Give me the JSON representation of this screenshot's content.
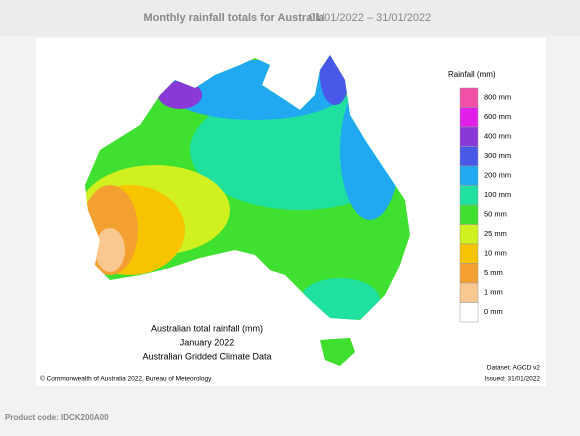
{
  "header": {
    "title": "Monthly rainfall totals for Australia",
    "period": "01/01/2022 – 31/01/2022"
  },
  "map": {
    "legend": {
      "title": "Rainfall (mm)",
      "items": [
        {
          "label": "800 mm",
          "color": "#f050a8"
        },
        {
          "label": "600 mm",
          "color": "#e020e8"
        },
        {
          "label": "400 mm",
          "color": "#8a38d8"
        },
        {
          "label": "300 mm",
          "color": "#4858e8"
        },
        {
          "label": "200 mm",
          "color": "#20a8f0"
        },
        {
          "label": "100 mm",
          "color": "#20e0a0"
        },
        {
          "label": "50 mm",
          "color": "#40e030"
        },
        {
          "label": "25 mm",
          "color": "#d0f020"
        },
        {
          "label": "10 mm",
          "color": "#f6c400"
        },
        {
          "label": "5 mm",
          "color": "#f4a030"
        },
        {
          "label": "1 mm",
          "color": "#f8c890"
        },
        {
          "label": "0 mm",
          "color": "#ffffff"
        }
      ]
    },
    "caption": [
      "Australian total rainfall (mm)",
      "January 2022",
      "Australian Gridded Climate Data"
    ],
    "copyright": "© Commonwealth of Australia 2022, Bureau of Meteorology",
    "dataset": "Dataset: AGCD v2",
    "issued": "Issued: 31/01/2022"
  },
  "product_code": "Product code: IDCK200A00"
}
